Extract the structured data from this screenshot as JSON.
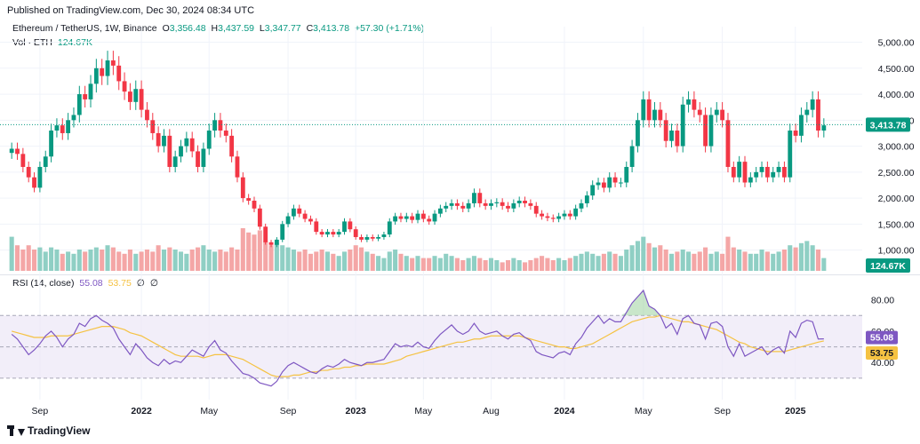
{
  "header": {
    "published": "Published on TradingView.com, Dec 30, 2024 08:34 UTC"
  },
  "legend": {
    "symbol": "Ethereum / TetherUS, 1W, Binance",
    "o_label": "O",
    "o_value": "3,356.48",
    "h_label": "H",
    "h_value": "3,437.59",
    "l_label": "L",
    "l_value": "3,347.77",
    "c_label": "C",
    "c_value": "3,413.78",
    "change": "+57.30 (+1.71%)",
    "vol_label": "Vol · ETH",
    "vol_value": "124.67K"
  },
  "rsi_legend": {
    "label": "RSI (14, close)",
    "rsi_value": "55.08",
    "ma_value": "53.75",
    "extra1": "∅",
    "extra2": "∅"
  },
  "footer": {
    "brand": "TradingView"
  },
  "colors": {
    "up": "#089981",
    "down": "#f23645",
    "up_vol": "#8fcfc4",
    "down_vol": "#f4a6a6",
    "rsi": "#7e57c2",
    "rsi_ma": "#f5c242",
    "band": "#ede7f6"
  },
  "chart_data": [
    {
      "type": "candlestick",
      "title": "Ethereum / TetherUS, 1W, Binance",
      "ylim": [
        600,
        5300
      ],
      "yticks": [
        "1,000.00",
        "1,500.00",
        "2,000.00",
        "2,500.00",
        "3,000.00",
        "3,500.00",
        "4,000.00",
        "4,500.00",
        "5,000.00"
      ],
      "ytick_values": [
        1000,
        1500,
        2000,
        2500,
        3000,
        3500,
        4000,
        4500,
        5000
      ],
      "xticks": [
        "Sep",
        "2022",
        "May",
        "Sep",
        "2023",
        "May",
        "Aug",
        "2024",
        "May",
        "Sep",
        "2025"
      ],
      "last_price": "3,413.78",
      "last_volume": "124.67K",
      "closes": [
        2950,
        2850,
        2600,
        2400,
        2200,
        2600,
        2800,
        3300,
        3400,
        3250,
        3500,
        3600,
        4000,
        3900,
        4200,
        4500,
        4350,
        4650,
        4550,
        4250,
        4050,
        3850,
        4100,
        3700,
        3500,
        3250,
        3000,
        3200,
        2600,
        2800,
        3000,
        3150,
        2900,
        2600,
        2950,
        3300,
        3500,
        3300,
        3200,
        2800,
        2400,
        2000,
        1950,
        1800,
        1450,
        1150,
        1100,
        1200,
        1500,
        1650,
        1800,
        1700,
        1600,
        1550,
        1350,
        1300,
        1350,
        1300,
        1350,
        1550,
        1400,
        1250,
        1200,
        1250,
        1220,
        1250,
        1300,
        1550,
        1650,
        1600,
        1650,
        1580,
        1700,
        1600,
        1550,
        1700,
        1800,
        1850,
        1900,
        1850,
        1800,
        1900,
        2100,
        1900,
        1850,
        1900,
        1920,
        1850,
        1800,
        1900,
        1950,
        1900,
        1850,
        1700,
        1650,
        1620,
        1600,
        1650,
        1700,
        1650,
        1800,
        1900,
        2050,
        2250,
        2300,
        2200,
        2400,
        2300,
        2300,
        2600,
        3000,
        3500,
        3900,
        3500,
        3700,
        3500,
        3100,
        3300,
        3000,
        3800,
        3900,
        3700,
        3600,
        3000,
        3600,
        3700,
        3500,
        2600,
        2400,
        2700,
        2300,
        2400,
        2500,
        2600,
        2400,
        2500,
        2600,
        2400,
        3300,
        3200,
        3600,
        3700,
        3900,
        3300,
        3400
      ],
      "volume_ratio": [
        0.8,
        0.6,
        0.5,
        0.6,
        0.5,
        0.55,
        0.45,
        0.55,
        0.5,
        0.4,
        0.45,
        0.4,
        0.5,
        0.45,
        0.5,
        0.55,
        0.5,
        0.6,
        0.55,
        0.45,
        0.4,
        0.5,
        0.4,
        0.45,
        0.5,
        0.45,
        0.6,
        0.5,
        0.55,
        0.5,
        0.45,
        0.4,
        0.5,
        0.55,
        0.6,
        0.5,
        0.45,
        0.5,
        0.45,
        0.55,
        0.5,
        1.0,
        0.9,
        0.85,
        0.95,
        0.7,
        0.6,
        0.65,
        0.6,
        0.55,
        0.5,
        0.45,
        0.5,
        0.4,
        0.45,
        0.5,
        0.45,
        0.4,
        0.35,
        0.45,
        0.5,
        0.6,
        0.55,
        0.45,
        0.4,
        0.35,
        0.3,
        0.45,
        0.5,
        0.4,
        0.35,
        0.3,
        0.35,
        0.3,
        0.3,
        0.35,
        0.3,
        0.4,
        0.35,
        0.3,
        0.25,
        0.3,
        0.35,
        0.3,
        0.25,
        0.3,
        0.25,
        0.2,
        0.25,
        0.3,
        0.25,
        0.2,
        0.25,
        0.3,
        0.35,
        0.3,
        0.25,
        0.3,
        0.25,
        0.3,
        0.35,
        0.4,
        0.45,
        0.4,
        0.35,
        0.4,
        0.45,
        0.4,
        0.35,
        0.5,
        0.6,
        0.7,
        0.8,
        0.65,
        0.55,
        0.6,
        0.5,
        0.4,
        0.45,
        0.5,
        0.45,
        0.4,
        0.45,
        0.55,
        0.4,
        0.45,
        0.4,
        0.8,
        0.55,
        0.5,
        0.45,
        0.4,
        0.4,
        0.5,
        0.45,
        0.4,
        0.45,
        0.5,
        0.6,
        0.55,
        0.65,
        0.7,
        0.6,
        0.5,
        0.3
      ]
    },
    {
      "type": "line",
      "title": "RSI (14, close)",
      "ylim": [
        22,
        90
      ],
      "yticks": [
        "40.00",
        "60.00",
        "80.00"
      ],
      "ytick_values": [
        40,
        60,
        80
      ],
      "band": [
        30,
        70
      ],
      "midline": 50,
      "series": [
        {
          "name": "RSI",
          "values": [
            58,
            55,
            50,
            45,
            48,
            52,
            57,
            60,
            56,
            50,
            55,
            58,
            65,
            63,
            68,
            70,
            67,
            65,
            62,
            55,
            50,
            45,
            52,
            48,
            43,
            40,
            38,
            42,
            39,
            41,
            40,
            44,
            48,
            46,
            44,
            50,
            54,
            48,
            46,
            41,
            37,
            33,
            32,
            30,
            27,
            26,
            25,
            28,
            34,
            38,
            40,
            38,
            36,
            34,
            33,
            36,
            38,
            37,
            39,
            42,
            40,
            39,
            38,
            40,
            40,
            41,
            42,
            47,
            52,
            50,
            51,
            50,
            53,
            50,
            49,
            54,
            58,
            61,
            64,
            60,
            58,
            60,
            65,
            60,
            58,
            59,
            60,
            57,
            55,
            58,
            59,
            56,
            54,
            47,
            45,
            44,
            43,
            46,
            47,
            45,
            52,
            56,
            62,
            66,
            70,
            65,
            68,
            66,
            66,
            72,
            78,
            82,
            86,
            76,
            74,
            70,
            62,
            65,
            58,
            68,
            70,
            65,
            64,
            55,
            65,
            66,
            63,
            50,
            44,
            52,
            44,
            46,
            48,
            50,
            45,
            48,
            50,
            46,
            60,
            56,
            65,
            67,
            66,
            55,
            55.08
          ]
        },
        {
          "name": "RSI-based MA",
          "values": [
            60,
            59,
            58,
            57,
            56,
            56,
            56,
            57,
            57,
            57,
            57,
            58,
            59,
            60,
            61,
            62,
            63,
            63,
            63,
            62,
            61,
            59,
            58,
            57,
            55,
            53,
            51,
            49,
            47,
            45,
            44,
            44,
            44,
            44,
            43,
            44,
            45,
            45,
            45,
            44,
            43,
            42,
            40,
            38,
            36,
            34,
            32,
            31,
            31,
            31,
            32,
            32,
            33,
            34,
            34,
            35,
            35,
            36,
            36,
            37,
            37,
            38,
            38,
            39,
            39,
            39,
            39,
            40,
            41,
            42,
            44,
            45,
            46,
            47,
            48,
            49,
            50,
            51,
            52,
            53,
            53,
            54,
            55,
            55,
            56,
            57,
            57,
            57,
            57,
            57,
            57,
            56,
            55,
            54,
            53,
            52,
            51,
            50,
            50,
            49,
            49,
            50,
            51,
            52,
            54,
            56,
            58,
            60,
            62,
            64,
            66,
            67,
            68,
            69,
            69,
            70,
            69,
            68,
            67,
            66,
            66,
            65,
            64,
            63,
            62,
            61,
            59,
            57,
            55,
            53,
            52,
            50,
            49,
            48,
            47,
            47,
            47,
            47,
            48,
            49,
            50,
            51,
            52,
            53,
            53.75
          ]
        }
      ]
    }
  ]
}
